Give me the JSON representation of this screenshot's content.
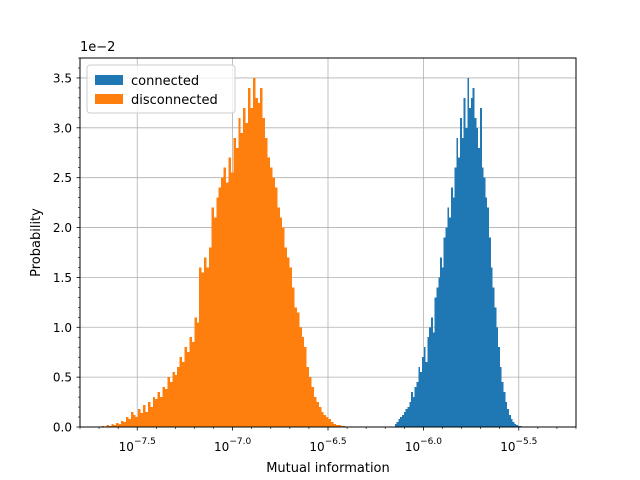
{
  "chart_data": {
    "type": "bar",
    "xscale": "log",
    "xlabel": "Mutual information",
    "ylabel": "Probability",
    "y_offset_label": "1e−2",
    "xlim": [
      -7.8,
      -5.2
    ],
    "ylim": [
      0,
      3.7
    ],
    "x_ticks": [
      {
        "exp": -7.5,
        "label_base": "10",
        "label_exp": "−7.5"
      },
      {
        "exp": -7.0,
        "label_base": "10",
        "label_exp": "−7.0"
      },
      {
        "exp": -6.5,
        "label_base": "10",
        "label_exp": "−6.5"
      },
      {
        "exp": -6.0,
        "label_base": "10",
        "label_exp": "−6.0"
      },
      {
        "exp": -5.5,
        "label_base": "10",
        "label_exp": "−5.5"
      }
    ],
    "y_ticks": [
      {
        "value": 0.0,
        "label": "0.0"
      },
      {
        "value": 0.5,
        "label": "0.5"
      },
      {
        "value": 1.0,
        "label": "1.0"
      },
      {
        "value": 1.5,
        "label": "1.5"
      },
      {
        "value": 2.0,
        "label": "2.0"
      },
      {
        "value": 2.5,
        "label": "2.5"
      },
      {
        "value": 3.0,
        "label": "3.0"
      },
      {
        "value": 3.5,
        "label": "3.5"
      }
    ],
    "grid": true,
    "legend_position": "top-left",
    "series": [
      {
        "name": "connected",
        "color": "#1f77b4",
        "bin_start": -6.15,
        "bin_width": 0.0095,
        "values": [
          0.03,
          0.05,
          0.08,
          0.1,
          0.12,
          0.15,
          0.18,
          0.2,
          0.25,
          0.35,
          0.3,
          0.4,
          0.45,
          0.6,
          0.55,
          0.7,
          0.8,
          0.65,
          0.9,
          1.0,
          1.1,
          0.95,
          1.3,
          1.4,
          1.5,
          1.7,
          1.6,
          1.9,
          2.0,
          2.2,
          2.1,
          2.4,
          2.3,
          2.6,
          2.9,
          2.7,
          3.1,
          2.9,
          3.3,
          3.0,
          3.5,
          3.2,
          3.3,
          3.4,
          3.1,
          3.0,
          2.8,
          3.2,
          2.6,
          2.5,
          2.3,
          2.2,
          1.9,
          1.6,
          1.4,
          1.2,
          1.0,
          0.8,
          0.6,
          0.45,
          0.35,
          0.25,
          0.18,
          0.12,
          0.08,
          0.05,
          0.03,
          0.02,
          0.01,
          0.01
        ]
      },
      {
        "name": "disconnected",
        "color": "#ff7f0e",
        "bin_start": -7.7,
        "bin_width": 0.0128,
        "values": [
          0.005,
          0.01,
          0.005,
          0.02,
          0.01,
          0.03,
          0.02,
          0.04,
          0.03,
          0.06,
          0.05,
          0.1,
          0.08,
          0.15,
          0.12,
          0.1,
          0.18,
          0.14,
          0.22,
          0.15,
          0.25,
          0.2,
          0.3,
          0.28,
          0.35,
          0.3,
          0.4,
          0.38,
          0.5,
          0.45,
          0.55,
          0.52,
          0.6,
          0.7,
          0.65,
          0.8,
          0.75,
          0.9,
          0.85,
          1.1,
          1.05,
          1.6,
          1.55,
          1.7,
          1.6,
          1.8,
          2.2,
          2.1,
          2.3,
          2.4,
          2.5,
          2.6,
          2.45,
          2.7,
          2.55,
          2.9,
          2.8,
          3.1,
          2.95,
          3.2,
          3.05,
          3.4,
          3.2,
          3.5,
          3.3,
          3.25,
          3.4,
          3.1,
          2.9,
          2.7,
          2.6,
          2.5,
          2.4,
          2.2,
          2.1,
          2.0,
          1.8,
          1.7,
          1.6,
          1.4,
          1.2,
          1.15,
          1.0,
          0.9,
          0.8,
          0.6,
          0.5,
          0.4,
          0.3,
          0.25,
          0.2,
          0.15,
          0.12,
          0.1,
          0.08,
          0.05,
          0.03,
          0.02,
          0.02,
          0.01,
          0.01,
          0.005
        ]
      }
    ]
  }
}
